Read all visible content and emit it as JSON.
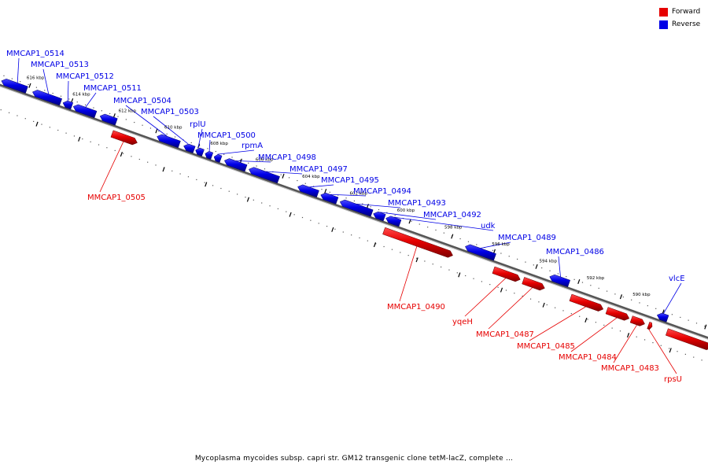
{
  "legend": [
    {
      "label": "Forward",
      "color": "#e60000"
    },
    {
      "label": "Reverse",
      "color": "#0000e6"
    }
  ],
  "caption": "Mycoplasma mycoides subsp. capri str. GM12 transgenic clone tetM-lacZ, complete ...",
  "colors": {
    "forward": "#e60000",
    "reverse": "#0000e6",
    "axis": "#808080"
  },
  "scale_ticks": [
    "616 kbp",
    "614 kbp",
    "612 kbp",
    "610 kbp",
    "608 kbp",
    "606 kbp",
    "604 kbp",
    "602 kbp",
    "600 kbp",
    "598 kbp",
    "596 kbp",
    "594 kbp",
    "592 kbp",
    "590 kbp"
  ],
  "chart_data": {
    "type": "genome-map",
    "features": [
      {
        "name": "MMCAP1_0514",
        "strand": "reverse"
      },
      {
        "name": "MMCAP1_0513",
        "strand": "reverse"
      },
      {
        "name": "MMCAP1_0512",
        "strand": "reverse"
      },
      {
        "name": "MMCAP1_0511",
        "strand": "reverse"
      },
      {
        "name": "MMCAP1_0504",
        "strand": "reverse"
      },
      {
        "name": "MMCAP1_0503",
        "strand": "reverse"
      },
      {
        "name": "rplU",
        "strand": "reverse"
      },
      {
        "name": "MMCAP1_0500",
        "strand": "reverse"
      },
      {
        "name": "rpmA",
        "strand": "reverse"
      },
      {
        "name": "MMCAP1_0498",
        "strand": "reverse"
      },
      {
        "name": "MMCAP1_0497",
        "strand": "reverse"
      },
      {
        "name": "MMCAP1_0495",
        "strand": "reverse"
      },
      {
        "name": "MMCAP1_0494",
        "strand": "reverse"
      },
      {
        "name": "MMCAP1_0493",
        "strand": "reverse"
      },
      {
        "name": "MMCAP1_0492",
        "strand": "reverse"
      },
      {
        "name": "udk",
        "strand": "reverse"
      },
      {
        "name": "MMCAP1_0489",
        "strand": "reverse"
      },
      {
        "name": "MMCAP1_0486",
        "strand": "reverse"
      },
      {
        "name": "vlcE",
        "strand": "reverse"
      },
      {
        "name": "MMCAP1_0505",
        "strand": "forward"
      },
      {
        "name": "MMCAP1_0490",
        "strand": "forward"
      },
      {
        "name": "yqeH",
        "strand": "forward"
      },
      {
        "name": "MMCAP1_0487",
        "strand": "forward"
      },
      {
        "name": "MMCAP1_0485",
        "strand": "forward"
      },
      {
        "name": "MMCAP1_0484",
        "strand": "forward"
      },
      {
        "name": "MMCAP1_0483",
        "strand": "forward"
      },
      {
        "name": "rpsU",
        "strand": "forward"
      }
    ]
  }
}
